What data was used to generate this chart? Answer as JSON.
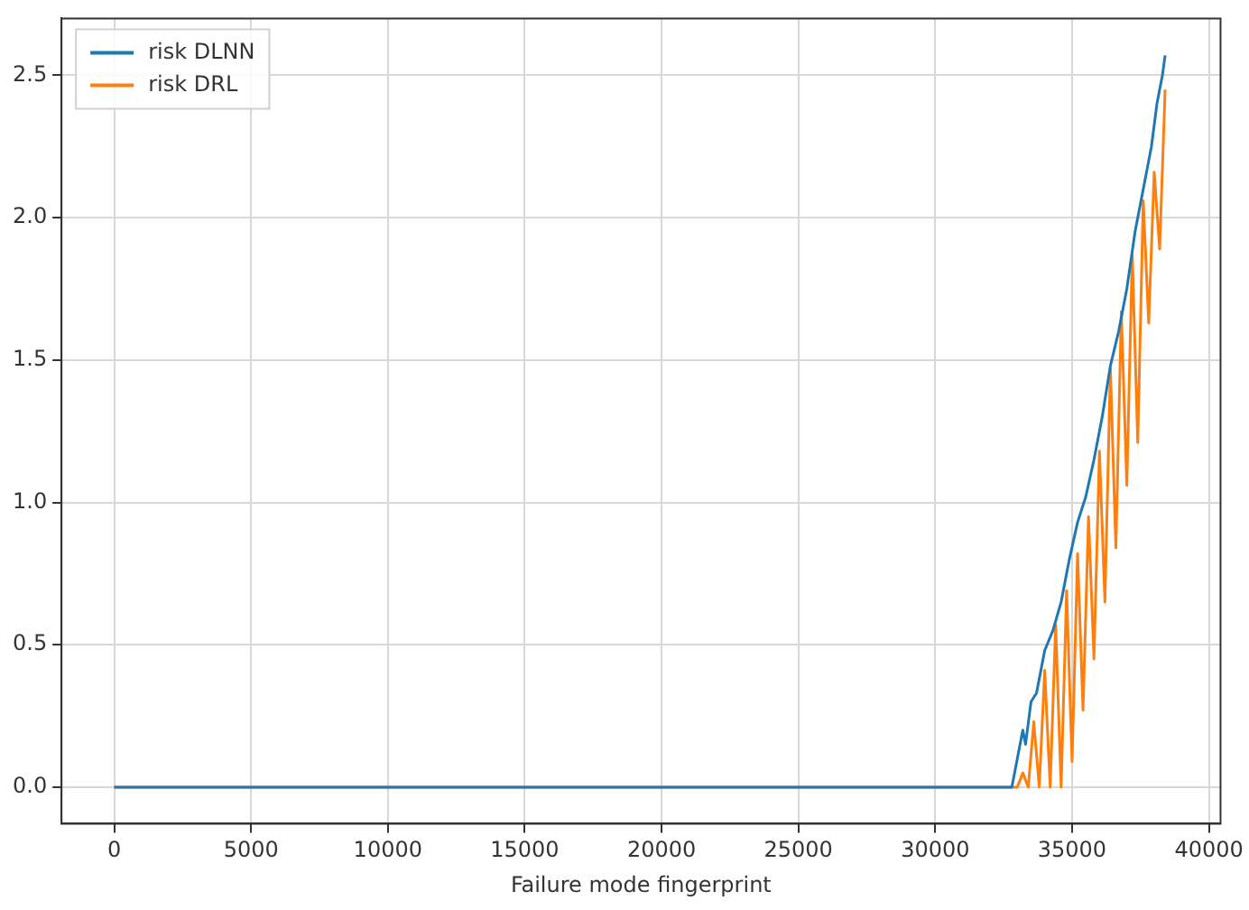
{
  "chart_data": {
    "type": "line",
    "xlabel": "Failure mode fingerprint",
    "xlim": [
      -1925,
      40425
    ],
    "xticks": [
      0,
      5000,
      10000,
      15000,
      20000,
      25000,
      30000,
      35000,
      40000
    ],
    "ylim": [
      -0.1285,
      2.7
    ],
    "yticks": [
      {
        "value": 0,
        "label": "0.0"
      },
      {
        "value": 0.5,
        "label": "0.5"
      },
      {
        "value": 1,
        "label": "1.0"
      },
      {
        "value": 1.5,
        "label": "1.5"
      },
      {
        "value": 2,
        "label": "2.0"
      },
      {
        "value": 2.5,
        "label": "2.5"
      }
    ],
    "grid": true,
    "legend": "top left",
    "marker": "none",
    "line_style": "solid",
    "series": [
      {
        "name": "risk DLNN",
        "color": "#1f77b4",
        "x": [
          0,
          32800,
          33000,
          33200,
          33300,
          33500,
          33700,
          34000,
          34300,
          34600,
          34900,
          35200,
          35500,
          35800,
          36100,
          36400,
          36700,
          37000,
          37300,
          37600,
          37900,
          38100,
          38300,
          38400
        ],
        "values": [
          0,
          0,
          0.1,
          0.2,
          0.15,
          0.3,
          0.33,
          0.48,
          0.55,
          0.65,
          0.8,
          0.93,
          1.02,
          1.15,
          1.3,
          1.48,
          1.6,
          1.75,
          1.95,
          2.1,
          2.25,
          2.4,
          2.5,
          2.57
        ]
      },
      {
        "name": "risk DRL",
        "color": "#ff7f0e",
        "x": [
          0,
          33000,
          33200,
          33400,
          33600,
          33800,
          34000,
          34200,
          34400,
          34600,
          34800,
          35000,
          35200,
          35400,
          35600,
          35800,
          36000,
          36200,
          36400,
          36600,
          36800,
          37000,
          37200,
          37400,
          37600,
          37800,
          38000,
          38200,
          38400
        ],
        "values": [
          0,
          0,
          0.05,
          0,
          0.23,
          0,
          0.41,
          0,
          0.57,
          0,
          0.69,
          0.09,
          0.82,
          0.27,
          0.95,
          0.45,
          1.18,
          0.65,
          1.47,
          0.84,
          1.67,
          1.06,
          1.87,
          1.21,
          2.06,
          1.63,
          2.16,
          1.89,
          2.45
        ]
      }
    ]
  }
}
